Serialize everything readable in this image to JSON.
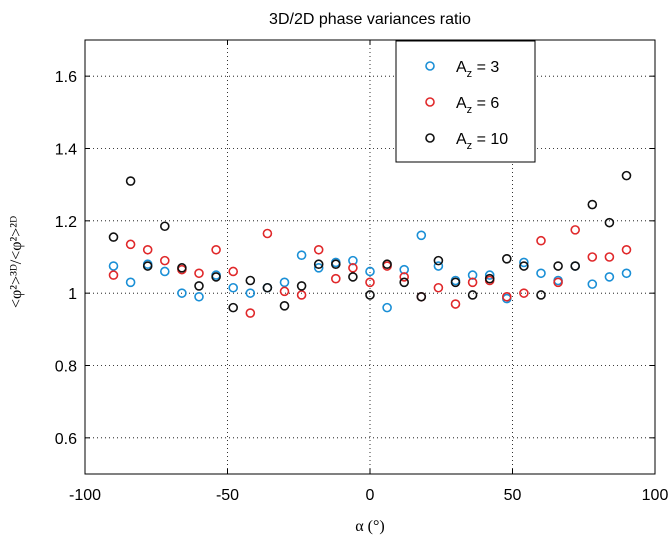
{
  "chart_data": {
    "type": "scatter",
    "title": "3D/2D phase variances ratio",
    "xlabel": "α (°)",
    "ylabel": "<φ²>³ᴰ/<φ²>²ᴰ",
    "xlim": [
      -100,
      100
    ],
    "ylim": [
      0.5,
      1.7
    ],
    "xticks": [
      -100,
      -50,
      0,
      50,
      100
    ],
    "yticks": [
      0.6,
      0.8,
      1.0,
      1.2,
      1.4,
      1.6
    ],
    "xtick_labels": [
      "-100",
      "-50",
      "0",
      "50",
      "100"
    ],
    "ytick_labels": [
      "0.6",
      "0.8",
      "1",
      "1.2",
      "1.4",
      "1.6"
    ],
    "grid": true,
    "legend_position": "top-right",
    "series": [
      {
        "name": "A_z = 3",
        "label_main": "A",
        "label_sub": "z",
        "label_rest": " = 3",
        "color": "#1a8fd6",
        "x": [
          -90,
          -84,
          -78,
          -72,
          -66,
          -60,
          -54,
          -48,
          -42,
          -36,
          -30,
          -24,
          -18,
          -12,
          -6,
          0,
          6,
          12,
          18,
          24,
          30,
          36,
          42,
          48,
          54,
          60,
          66,
          72,
          78,
          84,
          90
        ],
        "y": [
          1.075,
          1.03,
          1.08,
          1.06,
          1.0,
          0.99,
          1.05,
          1.015,
          1.0,
          1.015,
          1.03,
          1.105,
          1.07,
          1.085,
          1.09,
          1.06,
          0.96,
          1.065,
          1.16,
          1.075,
          1.035,
          1.05,
          1.05,
          0.985,
          1.085,
          1.055,
          1.035,
          1.075,
          1.025,
          1.045,
          1.055
        ]
      },
      {
        "name": "A_z = 6",
        "label_main": "A",
        "label_sub": "z",
        "label_rest": " = 6",
        "color": "#e0282a",
        "x": [
          -90,
          -84,
          -78,
          -72,
          -66,
          -60,
          -54,
          -48,
          -42,
          -36,
          -30,
          -24,
          -18,
          -12,
          -6,
          0,
          6,
          12,
          18,
          24,
          30,
          36,
          42,
          48,
          54,
          60,
          66,
          72,
          78,
          84,
          90
        ],
        "y": [
          1.05,
          1.135,
          1.12,
          1.09,
          1.065,
          1.055,
          1.12,
          1.06,
          0.945,
          1.165,
          1.005,
          0.995,
          1.12,
          1.04,
          1.07,
          1.03,
          1.075,
          1.045,
          0.99,
          1.015,
          0.97,
          1.03,
          1.035,
          0.99,
          1.0,
          1.145,
          1.03,
          1.175,
          1.1,
          1.1,
          1.12
        ]
      },
      {
        "name": "A_z = 10",
        "label_main": "A",
        "label_sub": "z",
        "label_rest": " = 10",
        "color": "#111111",
        "x": [
          -90,
          -84,
          -78,
          -72,
          -66,
          -60,
          -54,
          -48,
          -42,
          -36,
          -30,
          -24,
          -18,
          -12,
          -6,
          0,
          6,
          12,
          18,
          24,
          30,
          36,
          42,
          48,
          54,
          60,
          66,
          72,
          78,
          84,
          90
        ],
        "y": [
          1.155,
          1.31,
          1.075,
          1.185,
          1.07,
          1.02,
          1.045,
          0.96,
          1.035,
          1.015,
          0.965,
          1.02,
          1.08,
          1.08,
          1.045,
          0.995,
          1.08,
          1.03,
          0.99,
          1.09,
          1.03,
          0.995,
          1.04,
          1.095,
          1.075,
          0.995,
          1.075,
          1.075,
          1.245,
          1.195,
          1.325
        ]
      }
    ]
  }
}
